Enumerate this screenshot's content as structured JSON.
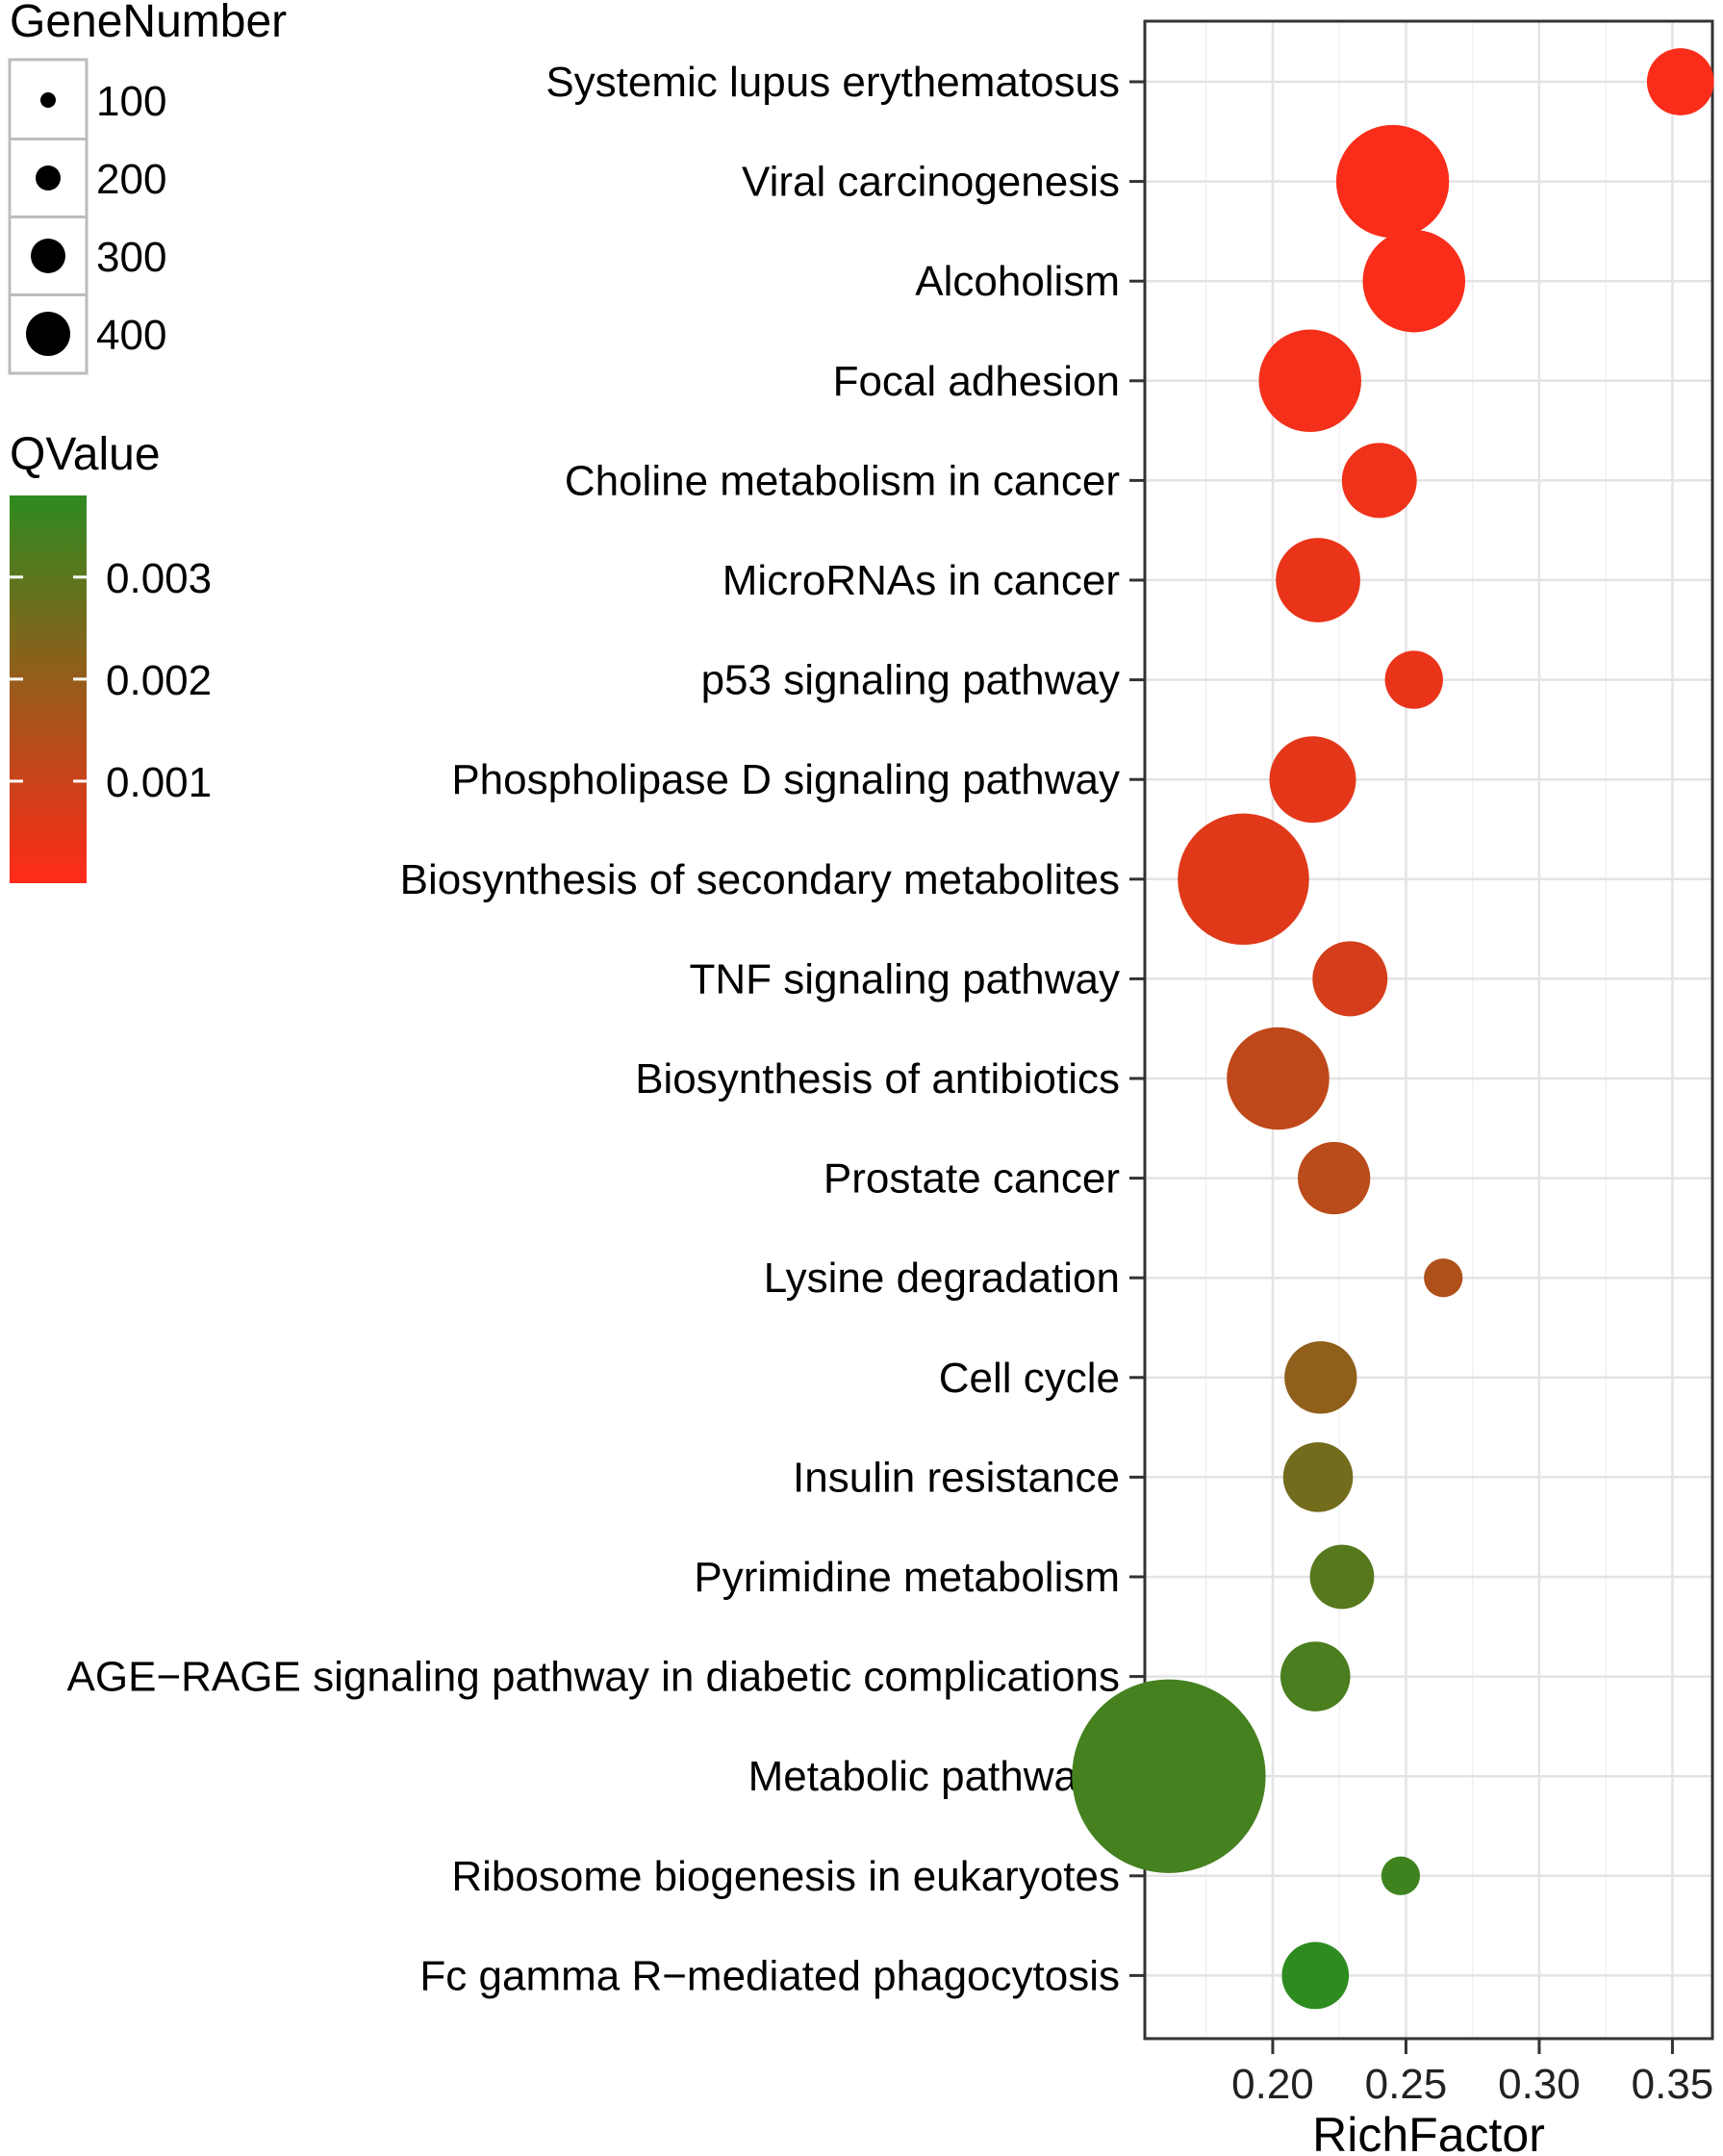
{
  "chart_data": {
    "type": "scatter",
    "title": "",
    "xlabel": "RichFactor",
    "ylabel": "",
    "xlim": [
      0.152,
      0.365
    ],
    "xticks": [
      0.2,
      0.25,
      0.3,
      0.35
    ],
    "xtick_labels": [
      "0.20",
      "0.25",
      "0.30",
      "0.35"
    ],
    "grid": true,
    "points": [
      {
        "pathway": "Systemic lupus erythematosus",
        "rich_factor": 0.353,
        "gene_number": 60,
        "qvalue": 0.0001
      },
      {
        "pathway": "Viral carcinogenesis",
        "rich_factor": 0.245,
        "gene_number": 170,
        "qvalue": 0.0001
      },
      {
        "pathway": "Alcoholism",
        "rich_factor": 0.253,
        "gene_number": 140,
        "qvalue": 0.0001
      },
      {
        "pathway": "Focal adhesion",
        "rich_factor": 0.214,
        "gene_number": 140,
        "qvalue": 0.0002
      },
      {
        "pathway": "Choline metabolism in cancer",
        "rich_factor": 0.24,
        "gene_number": 75,
        "qvalue": 0.0003
      },
      {
        "pathway": "MicroRNAs in cancer",
        "rich_factor": 0.217,
        "gene_number": 95,
        "qvalue": 0.0004
      },
      {
        "pathway": "p53 signaling pathway",
        "rich_factor": 0.253,
        "gene_number": 45,
        "qvalue": 0.0004
      },
      {
        "pathway": "Phospholipase D signaling pathway",
        "rich_factor": 0.215,
        "gene_number": 100,
        "qvalue": 0.0005
      },
      {
        "pathway": "Biosynthesis of secondary metabolites",
        "rich_factor": 0.189,
        "gene_number": 230,
        "qvalue": 0.0006
      },
      {
        "pathway": "TNF signaling pathway",
        "rich_factor": 0.229,
        "gene_number": 75,
        "qvalue": 0.0008
      },
      {
        "pathway": "Biosynthesis of antibiotics",
        "rich_factor": 0.202,
        "gene_number": 140,
        "qvalue": 0.0012
      },
      {
        "pathway": "Prostate cancer",
        "rich_factor": 0.223,
        "gene_number": 70,
        "qvalue": 0.0013
      },
      {
        "pathway": "Lysine degradation",
        "rich_factor": 0.264,
        "gene_number": 20,
        "qvalue": 0.0015
      },
      {
        "pathway": "Cell cycle",
        "rich_factor": 0.218,
        "gene_number": 70,
        "qvalue": 0.0021
      },
      {
        "pathway": "Insulin resistance",
        "rich_factor": 0.217,
        "gene_number": 65,
        "qvalue": 0.0026
      },
      {
        "pathway": "Pyrimidine metabolism",
        "rich_factor": 0.226,
        "gene_number": 55,
        "qvalue": 0.0031
      },
      {
        "pathway": "AGE−RAGE signaling pathway in diabetic complications",
        "rich_factor": 0.216,
        "gene_number": 65,
        "qvalue": 0.0033
      },
      {
        "pathway": "Metabolic pathways",
        "rich_factor": 0.161,
        "gene_number": 500,
        "qvalue": 0.0034
      },
      {
        "pathway": "Ribosome biogenesis in eukaryotes",
        "rich_factor": 0.248,
        "gene_number": 20,
        "qvalue": 0.0035
      },
      {
        "pathway": "Fc gamma R−mediated phagocytosis",
        "rich_factor": 0.216,
        "gene_number": 60,
        "qvalue": 0.0038
      }
    ],
    "size_legend": {
      "title": "GeneNumber",
      "values": [
        100,
        200,
        300,
        400
      ],
      "labels": [
        "100",
        "200",
        "300",
        "400"
      ]
    },
    "color_legend": {
      "title": "QValue",
      "range": [
        0.0,
        0.0038
      ],
      "ticks": [
        0.003,
        0.002,
        0.001
      ],
      "labels": [
        "0.003",
        "0.002",
        "0.001"
      ],
      "low_color": "#ff2a1a",
      "high_color": "#2e8b20"
    }
  }
}
